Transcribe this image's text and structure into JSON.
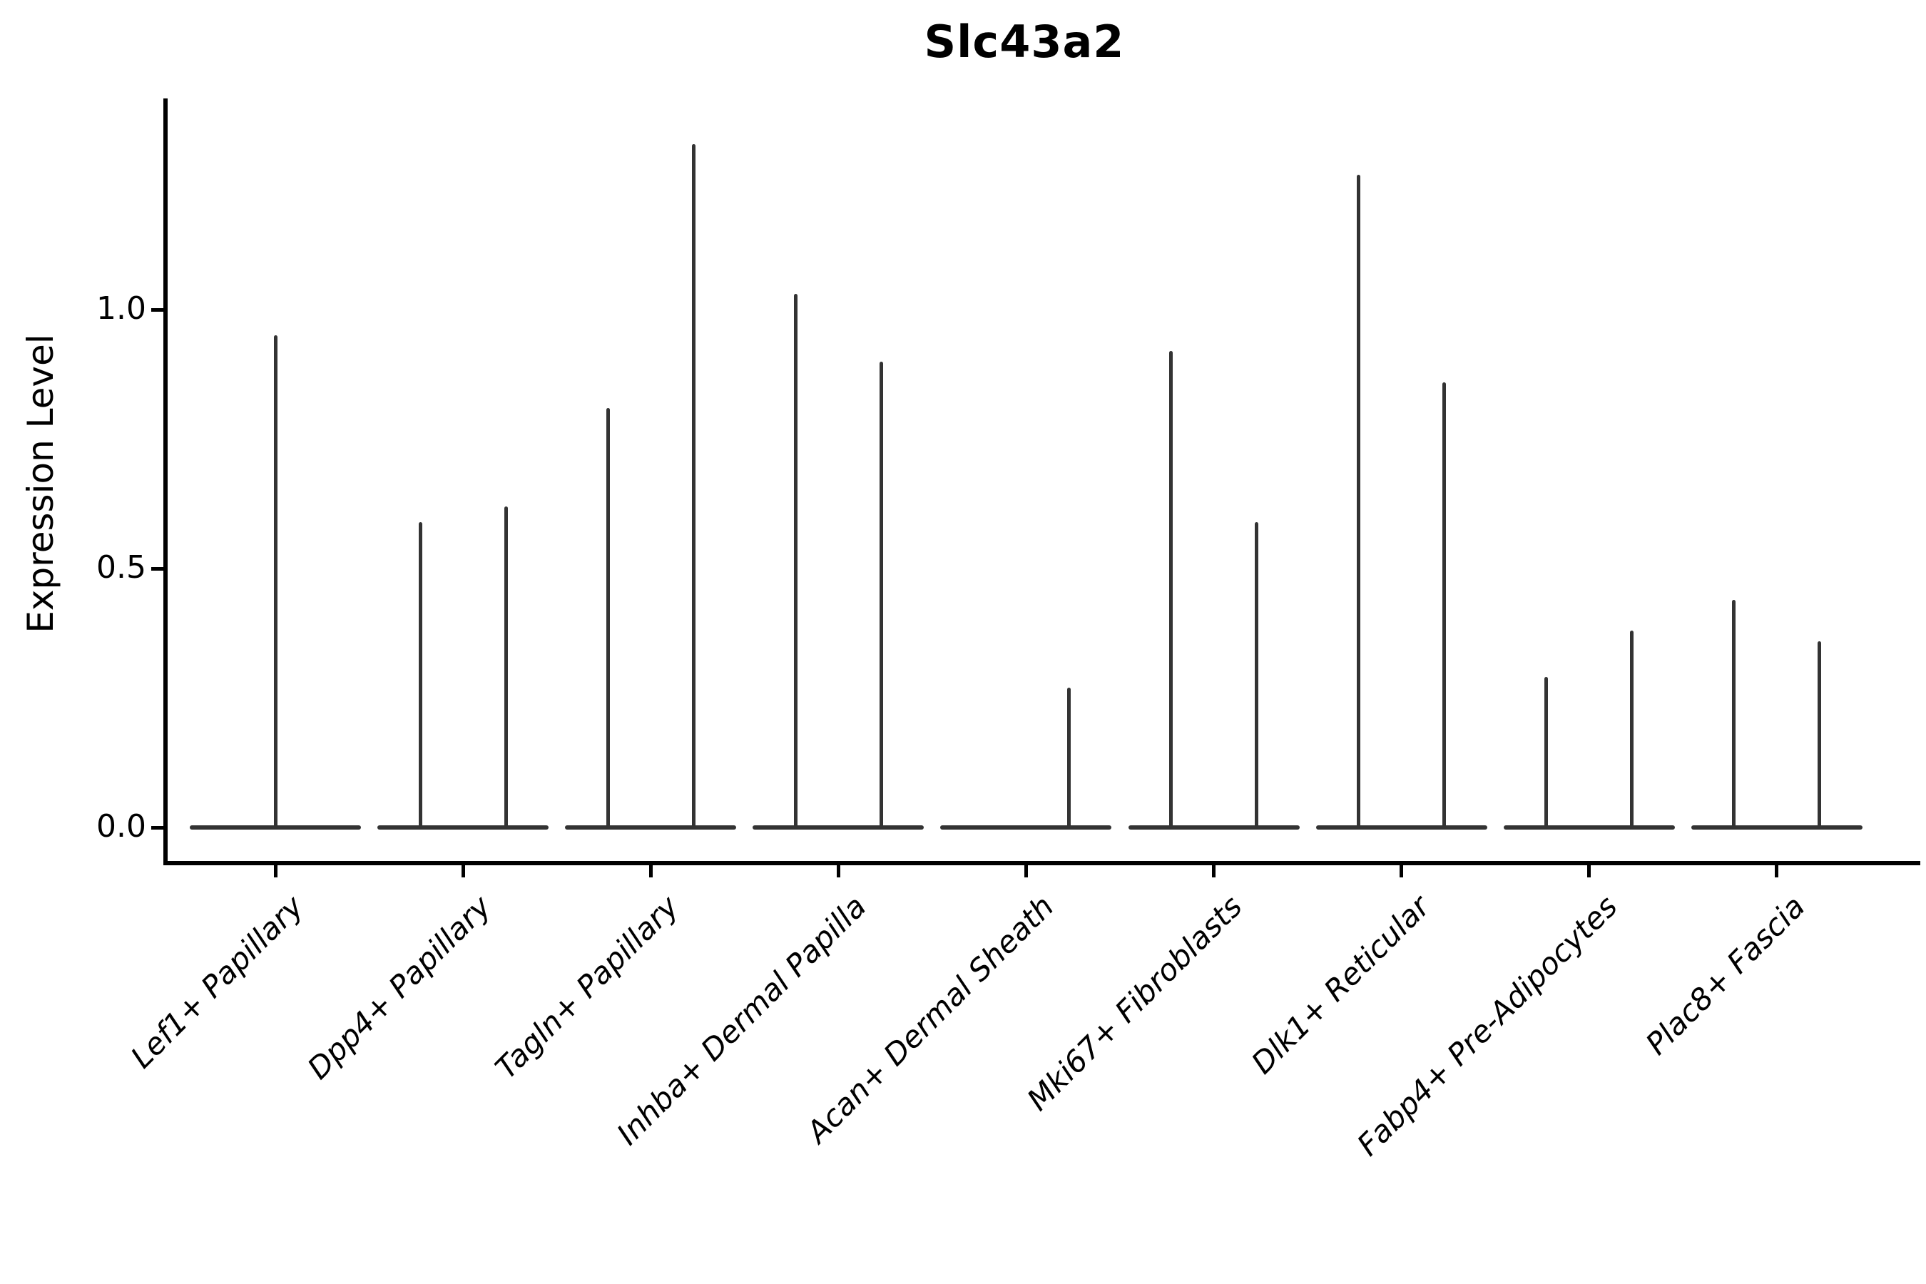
{
  "title": "Slc43a2",
  "y_axis": {
    "label": "Expression Level",
    "tick_labels": [
      "0.0",
      "0.5",
      "1.0"
    ]
  },
  "colors": {
    "violin_line": "#333333",
    "axis": "#000000",
    "background": "#ffffff"
  },
  "chart_data": {
    "type": "violin",
    "title": "Slc43a2",
    "xlabel": "",
    "ylabel": "Expression Level",
    "ylim": [
      0,
      1.4
    ],
    "yticks": [
      0.0,
      0.5,
      1.0
    ],
    "ytick_labels": [
      "0.0",
      "0.5",
      "1.0"
    ],
    "grid": false,
    "legend": "none",
    "categories": [
      "Lef1+ Papillary",
      "Dpp4+ Papillary",
      "Tagln+ Papillary",
      "Inhba+ Dermal Papilla",
      "Acan+ Dermal Sheath",
      "Mki67+ Fibroblasts",
      "Dlk1+ Reticular",
      "Fabp4+ Pre-Adipocytes",
      "Plac8+ Fascia"
    ],
    "description": "Violin plot of Slc43a2 expression per fibroblast cluster; each violin collapses to a flat line at 0 with thin spikes reaching the maximum expression of the rare expressing cells. Categories with two spikes contain two side-by-side violins (left/right); 'center' denotes a single full-width violin.",
    "violins": [
      {
        "category": "Lef1+ Papillary",
        "spikes": [
          {
            "pos": "center",
            "max": 0.95
          }
        ]
      },
      {
        "category": "Dpp4+ Papillary",
        "spikes": [
          {
            "pos": "left",
            "max": 0.59
          },
          {
            "pos": "right",
            "max": 0.62
          }
        ]
      },
      {
        "category": "Tagln+ Papillary",
        "spikes": [
          {
            "pos": "left",
            "max": 0.81
          },
          {
            "pos": "right",
            "max": 1.32
          }
        ]
      },
      {
        "category": "Inhba+ Dermal Papilla",
        "spikes": [
          {
            "pos": "left",
            "max": 1.03
          },
          {
            "pos": "right",
            "max": 0.9
          }
        ]
      },
      {
        "category": "Acan+ Dermal Sheath",
        "spikes": [
          {
            "pos": "right",
            "max": 0.27
          }
        ]
      },
      {
        "category": "Mki67+ Fibroblasts",
        "spikes": [
          {
            "pos": "left",
            "max": 0.92
          },
          {
            "pos": "right",
            "max": 0.59
          }
        ]
      },
      {
        "category": "Dlk1+ Reticular",
        "spikes": [
          {
            "pos": "left",
            "max": 1.26
          },
          {
            "pos": "right",
            "max": 0.86
          }
        ]
      },
      {
        "category": "Fabp4+ Pre-Adipocytes",
        "spikes": [
          {
            "pos": "left",
            "max": 0.29
          },
          {
            "pos": "right",
            "max": 0.38
          }
        ]
      },
      {
        "category": "Plac8+ Fascia",
        "spikes": [
          {
            "pos": "left",
            "max": 0.44
          },
          {
            "pos": "right",
            "max": 0.36
          }
        ]
      }
    ]
  }
}
